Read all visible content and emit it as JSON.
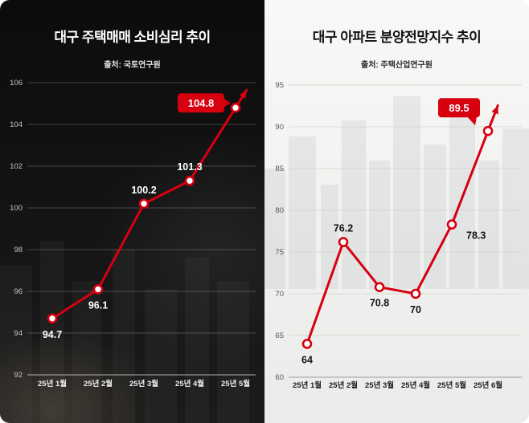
{
  "accent": "#d6000f",
  "chart_data": [
    {
      "type": "line",
      "title": "대구 주택매매 소비심리 추이",
      "source": "출처: 국토연구원",
      "categories": [
        "25년 1월",
        "25년 2월",
        "25년 3월",
        "25년 4월",
        "25년 5월"
      ],
      "values": [
        94.7,
        96.1,
        100.2,
        101.3,
        104.8
      ],
      "ylim": [
        92,
        106
      ],
      "yticks": [
        92,
        94,
        96,
        98,
        100,
        102,
        104,
        106
      ],
      "grid": true,
      "legend": false,
      "theme": "dark",
      "accent": "#d6000f",
      "label_positions": [
        "below",
        "below",
        "above",
        "above",
        "badge"
      ]
    },
    {
      "type": "line",
      "title": "대구 아파트 분양전망지수 추이",
      "source": "출처: 주택산업연구원",
      "categories": [
        "25년 1월",
        "25년 2월",
        "25년 3월",
        "25년 4월",
        "25년 5월",
        "25년 6월"
      ],
      "values": [
        64,
        76.2,
        70.8,
        70,
        78.3,
        89.5
      ],
      "ylim": [
        60,
        95
      ],
      "yticks": [
        60,
        65,
        70,
        75,
        80,
        85,
        90,
        95
      ],
      "grid": true,
      "legend": false,
      "theme": "light",
      "accent": "#d6000f",
      "label_positions": [
        "below",
        "above",
        "below",
        "below",
        "below-right",
        "badge"
      ]
    }
  ]
}
